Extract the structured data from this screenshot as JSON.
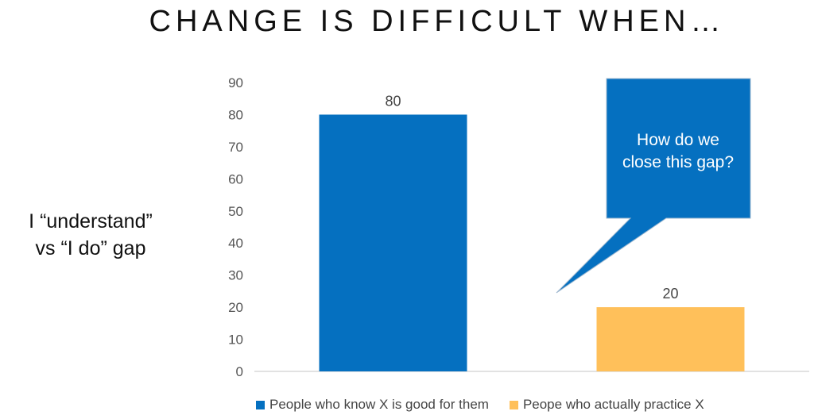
{
  "title": "CHANGE IS DIFFICULT WHEN…",
  "side_label": [
    "I “understand”",
    "vs “I do” gap"
  ],
  "callout": {
    "text": [
      "How do we",
      "close this gap?"
    ],
    "color": "#0570C0"
  },
  "colors": {
    "series1": "#0570C0",
    "series2": "#FFC05A",
    "axis_text": "#555555",
    "axis_line": "#D9D9D9"
  },
  "chart_data": {
    "type": "bar",
    "categories": [
      "People who know X is good for them",
      "Peope who actually practice X"
    ],
    "values": [
      80,
      20
    ],
    "data_labels": [
      "80",
      "20"
    ],
    "yticks": [
      "0",
      "10",
      "20",
      "30",
      "40",
      "50",
      "60",
      "70",
      "80",
      "90"
    ],
    "ylim": [
      0,
      90
    ],
    "grid": false,
    "legend": "bottom"
  }
}
